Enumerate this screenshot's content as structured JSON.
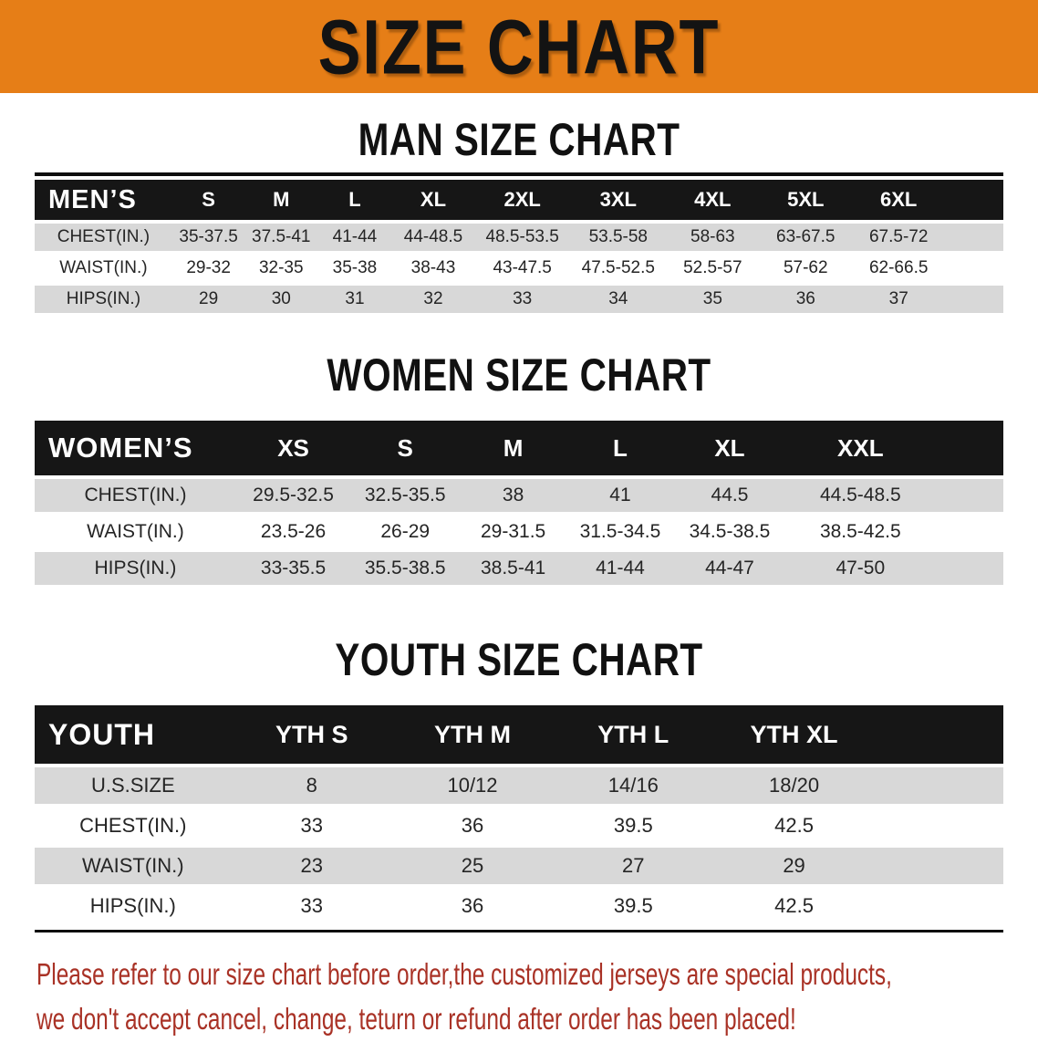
{
  "banner": {
    "title": "SIZE CHART"
  },
  "colors": {
    "banner_bg": "#E67E17",
    "header_band_bg": "#161616",
    "row_alt_bg": "#D8D8D8",
    "footer_text": "#A93226"
  },
  "sections": [
    {
      "heading": "MAN SIZE CHART",
      "corner": "MEN’S",
      "columns": [
        "S",
        "M",
        "L",
        "XL",
        "2XL",
        "3XL",
        "4XL",
        "5XL",
        "6XL"
      ],
      "rows": [
        {
          "label": "CHEST(IN.)",
          "values": [
            "35-37.5",
            "37.5-41",
            "41-44",
            "44-48.5",
            "48.5-53.5",
            "53.5-58",
            "58-63",
            "63-67.5",
            "67.5-72"
          ]
        },
        {
          "label": "WAIST(IN.)",
          "values": [
            "29-32",
            "32-35",
            "35-38",
            "38-43",
            "43-47.5",
            "47.5-52.5",
            "52.5-57",
            "57-62",
            "62-66.5"
          ]
        },
        {
          "label": "HIPS(IN.)",
          "values": [
            "29",
            "30",
            "31",
            "32",
            "33",
            "34",
            "35",
            "36",
            "37"
          ]
        }
      ]
    },
    {
      "heading": "WOMEN SIZE CHART",
      "corner": "WOMEN’S",
      "columns": [
        "XS",
        "S",
        "M",
        "L",
        "XL",
        "XXL"
      ],
      "rows": [
        {
          "label": "CHEST(IN.)",
          "values": [
            "29.5-32.5",
            "32.5-35.5",
            "38",
            "41",
            "44.5",
            "44.5-48.5"
          ]
        },
        {
          "label": "WAIST(IN.)",
          "values": [
            "23.5-26",
            "26-29",
            "29-31.5",
            "31.5-34.5",
            "34.5-38.5",
            "38.5-42.5"
          ]
        },
        {
          "label": "HIPS(IN.)",
          "values": [
            "33-35.5",
            "35.5-38.5",
            "38.5-41",
            "41-44",
            "44-47",
            "47-50"
          ]
        }
      ]
    },
    {
      "heading": "YOUTH SIZE CHART",
      "corner": "YOUTH",
      "columns": [
        "YTH S",
        "YTH M",
        "YTH L",
        "YTH XL"
      ],
      "rows": [
        {
          "label": "U.S.SIZE",
          "values": [
            "8",
            "10/12",
            "14/16",
            "18/20"
          ]
        },
        {
          "label": "CHEST(IN.)",
          "values": [
            "33",
            "36",
            "39.5",
            "42.5"
          ]
        },
        {
          "label": "WAIST(IN.)",
          "values": [
            "23",
            "25",
            "27",
            "29"
          ]
        },
        {
          "label": "HIPS(IN.)",
          "values": [
            "33",
            "36",
            "39.5",
            "42.5"
          ]
        }
      ]
    }
  ],
  "footer": {
    "line1": "Please refer to our size chart before order,the customized jerseys are special products,",
    "line2": "we don't accept cancel, change, teturn or refund after order has been placed!"
  }
}
